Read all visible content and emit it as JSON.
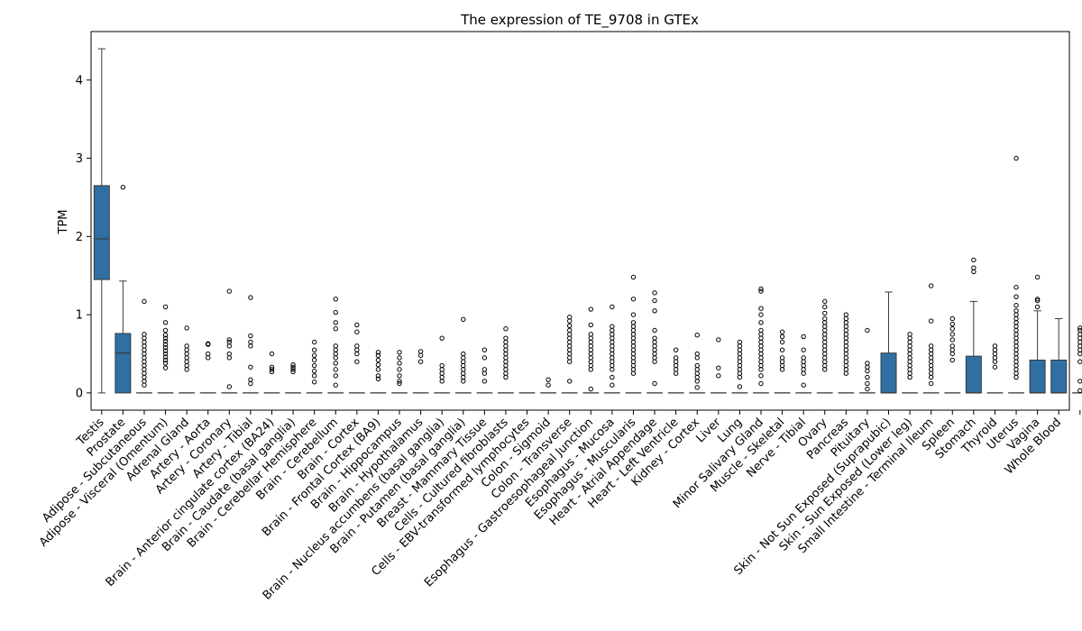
{
  "chart_data": {
    "type": "box",
    "title": "The expression of TE_9708 in GTEx",
    "xlabel": "",
    "ylabel": "TPM",
    "ylim": [
      -0.22,
      4.62
    ],
    "yticks": [
      0,
      1,
      2,
      3,
      4
    ],
    "grid": false,
    "categories": [
      "Testis",
      "Prostate",
      "Adipose - Subcutaneous",
      "Adipose - Visceral (Omentum)",
      "Adrenal Gland",
      "Artery - Aorta",
      "Artery - Coronary",
      "Artery - Tibial",
      "Brain - Anterior cingulate cortex (BA24)",
      "Brain - Caudate (basal ganglia)",
      "Brain - Cerebellar Hemisphere",
      "Brain - Cerebellum",
      "Brain - Cortex",
      "Brain - Frontal Cortex (BA9)",
      "Brain - Hippocampus",
      "Brain - Hypothalamus",
      "Brain - Nucleus accumbens (basal ganglia)",
      "Brain - Putamen (basal ganglia)",
      "Breast - Mammary Tissue",
      "Cells - Cultured fibroblasts",
      "Cells - EBV-transformed lymphocytes",
      "Colon - Sigmoid",
      "Colon - Transverse",
      "Esophagus - Gastroesophageal Junction",
      "Esophagus - Mucosa",
      "Esophagus - Muscularis",
      "Heart - Atrial Appendage",
      "Heart - Left Ventricle",
      "Kidney - Cortex",
      "Liver",
      "Lung",
      "Minor Salivary Gland",
      "Muscle - Skeletal",
      "Nerve - Tibial",
      "Ovary",
      "Pancreas",
      "Pituitary",
      "Skin - Not Sun Exposed (Suprapubic)",
      "Skin - Sun Exposed (Lower leg)",
      "Small Intestine - Terminal Ileum",
      "Spleen",
      "Stomach",
      "Thyroid",
      "Uterus",
      "Vagina",
      "Whole Blood"
    ],
    "boxes": [
      {
        "q1": 1.45,
        "median": 1.97,
        "q3": 2.65,
        "whislo": 0,
        "whishi": 4.4,
        "fliers": []
      },
      {
        "q1": 0,
        "median": 0.51,
        "q3": 0.76,
        "whislo": 0,
        "whishi": 1.43,
        "fliers": [
          2.63
        ]
      },
      {
        "q1": 0,
        "median": 0,
        "q3": 0,
        "whislo": 0,
        "whishi": 0,
        "fliers": [
          0.1,
          0.15,
          0.2,
          0.25,
          0.3,
          0.35,
          0.4,
          0.45,
          0.5,
          0.55,
          0.6,
          0.65,
          0.7,
          0.75,
          1.17
        ]
      },
      {
        "q1": 0,
        "median": 0,
        "q3": 0,
        "whislo": 0,
        "whishi": 0,
        "fliers": [
          0.32,
          0.38,
          0.42,
          0.46,
          0.5,
          0.54,
          0.58,
          0.62,
          0.66,
          0.7,
          0.74,
          0.8,
          0.9,
          1.1
        ]
      },
      {
        "q1": 0,
        "median": 0,
        "q3": 0,
        "whislo": 0,
        "whishi": 0,
        "fliers": [
          0.3,
          0.35,
          0.4,
          0.45,
          0.5,
          0.55,
          0.6,
          0.83
        ]
      },
      {
        "q1": 0,
        "median": 0,
        "q3": 0,
        "whislo": 0,
        "whishi": 0,
        "fliers": [
          0.45,
          0.5,
          0.62,
          0.63
        ]
      },
      {
        "q1": 0,
        "median": 0,
        "q3": 0,
        "whislo": 0,
        "whishi": 0,
        "fliers": [
          0.08,
          0.45,
          0.5,
          0.6,
          0.65,
          0.68,
          1.3
        ]
      },
      {
        "q1": 0,
        "median": 0,
        "q3": 0,
        "whislo": 0,
        "whishi": 0,
        "fliers": [
          0.12,
          0.17,
          0.33,
          0.6,
          0.65,
          0.73,
          1.22
        ]
      },
      {
        "q1": 0,
        "median": 0,
        "q3": 0,
        "whislo": 0,
        "whishi": 0,
        "fliers": [
          0.27,
          0.3,
          0.33,
          0.5
        ]
      },
      {
        "q1": 0,
        "median": 0,
        "q3": 0,
        "whislo": 0,
        "whishi": 0,
        "fliers": [
          0.27,
          0.3,
          0.33,
          0.36
        ]
      },
      {
        "q1": 0,
        "median": 0,
        "q3": 0,
        "whislo": 0,
        "whishi": 0,
        "fliers": [
          0.14,
          0.22,
          0.28,
          0.35,
          0.42,
          0.48,
          0.55,
          0.65
        ]
      },
      {
        "q1": 0,
        "median": 0,
        "q3": 0,
        "whislo": 0,
        "whishi": 0,
        "fliers": [
          0.1,
          0.22,
          0.3,
          0.38,
          0.45,
          0.5,
          0.55,
          0.6,
          0.82,
          0.9,
          1.03,
          1.2
        ]
      },
      {
        "q1": 0,
        "median": 0,
        "q3": 0,
        "whislo": 0,
        "whishi": 0,
        "fliers": [
          0.4,
          0.5,
          0.55,
          0.6,
          0.78,
          0.87
        ]
      },
      {
        "q1": 0,
        "median": 0,
        "q3": 0,
        "whislo": 0,
        "whishi": 0,
        "fliers": [
          0.18,
          0.22,
          0.3,
          0.36,
          0.42,
          0.48,
          0.52
        ]
      },
      {
        "q1": 0,
        "median": 0,
        "q3": 0,
        "whislo": 0,
        "whishi": 0,
        "fliers": [
          0.12,
          0.15,
          0.22,
          0.3,
          0.38,
          0.45,
          0.52
        ]
      },
      {
        "q1": 0,
        "median": 0,
        "q3": 0,
        "whislo": 0,
        "whishi": 0,
        "fliers": [
          0.4,
          0.48,
          0.53
        ]
      },
      {
        "q1": 0,
        "median": 0,
        "q3": 0,
        "whislo": 0,
        "whishi": 0,
        "fliers": [
          0.15,
          0.2,
          0.25,
          0.3,
          0.35,
          0.7
        ]
      },
      {
        "q1": 0,
        "median": 0,
        "q3": 0,
        "whislo": 0,
        "whishi": 0,
        "fliers": [
          0.15,
          0.2,
          0.25,
          0.3,
          0.35,
          0.4,
          0.45,
          0.5,
          0.94
        ]
      },
      {
        "q1": 0,
        "median": 0,
        "q3": 0,
        "whislo": 0,
        "whishi": 0,
        "fliers": [
          0.15,
          0.25,
          0.3,
          0.45,
          0.55
        ]
      },
      {
        "q1": 0,
        "median": 0,
        "q3": 0,
        "whislo": 0,
        "whishi": 0,
        "fliers": [
          0.2,
          0.25,
          0.3,
          0.35,
          0.4,
          0.45,
          0.5,
          0.55,
          0.6,
          0.65,
          0.7,
          0.82
        ]
      },
      {
        "q1": 0,
        "median": 0,
        "q3": 0,
        "whislo": 0,
        "whishi": 0,
        "fliers": []
      },
      {
        "q1": 0,
        "median": 0,
        "q3": 0,
        "whislo": 0,
        "whishi": 0,
        "fliers": [
          0.1,
          0.17
        ]
      },
      {
        "q1": 0,
        "median": 0,
        "q3": 0,
        "whislo": 0,
        "whishi": 0,
        "fliers": [
          0.15,
          0.4,
          0.45,
          0.5,
          0.55,
          0.6,
          0.65,
          0.7,
          0.75,
          0.8,
          0.86,
          0.92,
          0.97
        ]
      },
      {
        "q1": 0,
        "median": 0,
        "q3": 0,
        "whislo": 0,
        "whishi": 0,
        "fliers": [
          0.05,
          0.3,
          0.35,
          0.4,
          0.45,
          0.5,
          0.55,
          0.6,
          0.65,
          0.7,
          0.75,
          0.87,
          1.07
        ]
      },
      {
        "q1": 0,
        "median": 0,
        "q3": 0,
        "whislo": 0,
        "whishi": 0,
        "fliers": [
          0.1,
          0.2,
          0.3,
          0.35,
          0.4,
          0.45,
          0.5,
          0.55,
          0.6,
          0.65,
          0.7,
          0.75,
          0.8,
          0.85,
          1.1
        ]
      },
      {
        "q1": 0,
        "median": 0,
        "q3": 0,
        "whislo": 0,
        "whishi": 0,
        "fliers": [
          0.25,
          0.3,
          0.35,
          0.4,
          0.45,
          0.5,
          0.55,
          0.6,
          0.65,
          0.7,
          0.75,
          0.8,
          0.85,
          0.9,
          1.0,
          1.2,
          1.48
        ]
      },
      {
        "q1": 0,
        "median": 0,
        "q3": 0,
        "whislo": 0,
        "whishi": 0,
        "fliers": [
          0.12,
          0.4,
          0.45,
          0.5,
          0.55,
          0.6,
          0.65,
          0.7,
          0.8,
          1.05,
          1.18,
          1.28
        ]
      },
      {
        "q1": 0,
        "median": 0,
        "q3": 0,
        "whislo": 0,
        "whishi": 0,
        "fliers": [
          0.25,
          0.3,
          0.35,
          0.4,
          0.45,
          0.55
        ]
      },
      {
        "q1": 0,
        "median": 0,
        "q3": 0,
        "whislo": 0,
        "whishi": 0,
        "fliers": [
          0.07,
          0.15,
          0.2,
          0.25,
          0.3,
          0.35,
          0.45,
          0.5,
          0.74
        ]
      },
      {
        "q1": 0,
        "median": 0,
        "q3": 0,
        "whislo": 0,
        "whishi": 0,
        "fliers": [
          0.22,
          0.32,
          0.68
        ]
      },
      {
        "q1": 0,
        "median": 0,
        "q3": 0,
        "whislo": 0,
        "whishi": 0,
        "fliers": [
          0.08,
          0.2,
          0.25,
          0.3,
          0.35,
          0.4,
          0.45,
          0.5,
          0.55,
          0.6,
          0.65
        ]
      },
      {
        "q1": 0,
        "median": 0,
        "q3": 0,
        "whislo": 0,
        "whishi": 0,
        "fliers": [
          0.12,
          0.22,
          0.3,
          0.35,
          0.4,
          0.45,
          0.5,
          0.55,
          0.6,
          0.65,
          0.7,
          0.75,
          0.8,
          0.9,
          1.0,
          1.08,
          1.3,
          1.33
        ]
      },
      {
        "q1": 0,
        "median": 0,
        "q3": 0,
        "whislo": 0,
        "whishi": 0,
        "fliers": [
          0.3,
          0.35,
          0.4,
          0.45,
          0.55,
          0.65,
          0.72,
          0.78
        ]
      },
      {
        "q1": 0,
        "median": 0,
        "q3": 0,
        "whislo": 0,
        "whishi": 0,
        "fliers": [
          0.1,
          0.25,
          0.3,
          0.35,
          0.4,
          0.45,
          0.55,
          0.72
        ]
      },
      {
        "q1": 0,
        "median": 0,
        "q3": 0,
        "whislo": 0,
        "whishi": 0,
        "fliers": [
          0.3,
          0.35,
          0.4,
          0.45,
          0.5,
          0.55,
          0.6,
          0.65,
          0.7,
          0.75,
          0.8,
          0.85,
          0.9,
          0.95,
          1.02,
          1.1,
          1.17
        ]
      },
      {
        "q1": 0,
        "median": 0,
        "q3": 0,
        "whislo": 0,
        "whishi": 0,
        "fliers": [
          0.25,
          0.3,
          0.35,
          0.4,
          0.45,
          0.5,
          0.55,
          0.6,
          0.65,
          0.7,
          0.75,
          0.8,
          0.85,
          0.9,
          0.95,
          1.0
        ]
      },
      {
        "q1": 0,
        "median": 0,
        "q3": 0,
        "whislo": 0,
        "whishi": 0,
        "fliers": [
          0.05,
          0.12,
          0.2,
          0.28,
          0.33,
          0.38,
          0.8
        ]
      },
      {
        "q1": 0,
        "median": 0,
        "q3": 0.51,
        "whislo": 0,
        "whishi": 1.29,
        "fliers": []
      },
      {
        "q1": 0,
        "median": 0,
        "q3": 0,
        "whislo": 0,
        "whishi": 0,
        "fliers": [
          0.2,
          0.25,
          0.3,
          0.35,
          0.4,
          0.45,
          0.5,
          0.55,
          0.6,
          0.65,
          0.7,
          0.75
        ]
      },
      {
        "q1": 0,
        "median": 0,
        "q3": 0,
        "whislo": 0,
        "whishi": 0,
        "fliers": [
          0.12,
          0.2,
          0.25,
          0.3,
          0.35,
          0.4,
          0.45,
          0.5,
          0.55,
          0.6,
          0.92,
          1.37
        ]
      },
      {
        "q1": 0,
        "median": 0,
        "q3": 0,
        "whislo": 0,
        "whishi": 0,
        "fliers": [
          0.42,
          0.5,
          0.55,
          0.6,
          0.68,
          0.75,
          0.82,
          0.88,
          0.95
        ]
      },
      {
        "q1": 0,
        "median": 0,
        "q3": 0.47,
        "whislo": 0,
        "whishi": 1.17,
        "fliers": [
          1.55,
          1.6,
          1.7
        ]
      },
      {
        "q1": 0,
        "median": 0,
        "q3": 0,
        "whislo": 0,
        "whishi": 0,
        "fliers": [
          0.33,
          0.4,
          0.45,
          0.5,
          0.55,
          0.6
        ]
      },
      {
        "q1": 0,
        "median": 0,
        "q3": 0,
        "whislo": 0,
        "whishi": 0,
        "fliers": [
          0.2,
          0.25,
          0.3,
          0.35,
          0.4,
          0.45,
          0.5,
          0.55,
          0.6,
          0.65,
          0.7,
          0.75,
          0.8,
          0.85,
          0.9,
          0.95,
          1.0,
          1.05,
          1.12,
          1.23,
          1.35,
          3.0
        ]
      },
      {
        "q1": 0,
        "median": 0,
        "q3": 0.42,
        "whislo": 0,
        "whishi": 1.05,
        "fliers": [
          1.1,
          1.18,
          1.2,
          1.48
        ]
      },
      {
        "q1": 0,
        "median": 0,
        "q3": 0.42,
        "whislo": 0,
        "whishi": 0.95,
        "fliers": []
      },
      {
        "q1": 0,
        "median": 0,
        "q3": 0,
        "whislo": 0,
        "whishi": 0,
        "fliers": [
          0.03,
          0.15,
          0.4,
          0.5,
          0.55,
          0.6,
          0.65,
          0.7,
          0.75,
          0.8,
          0.83
        ]
      }
    ],
    "colors": {
      "box_fill": "#2f6fa3",
      "box_edge": "#3a3a3a",
      "flier_edge": "#000000"
    }
  }
}
